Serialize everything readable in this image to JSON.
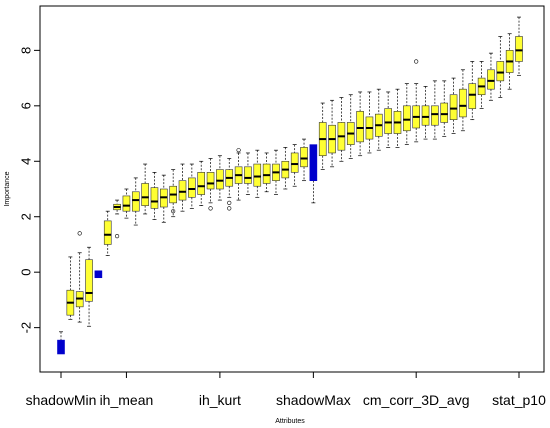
{
  "chart_data": {
    "type": "box",
    "xlabel": "Attributes",
    "ylabel": "Importance",
    "ylim": [
      -3.6,
      9.6
    ],
    "yticks": [
      -2,
      0,
      2,
      4,
      6,
      8
    ],
    "xticks": [
      {
        "index": 0,
        "label": "shadowMin"
      },
      {
        "index": 7,
        "label": "ih_mean"
      },
      {
        "index": 17,
        "label": "ih_kurt"
      },
      {
        "index": 27,
        "label": "shadowMax"
      },
      {
        "index": 38,
        "label": "cm_corr_3D_avg"
      },
      {
        "index": 49,
        "label": "stat_p10"
      }
    ],
    "colors": {
      "feature": "#ffff33",
      "shadow": "#0000cc",
      "median": "#000000",
      "whisker": "#000000"
    },
    "boxes": [
      {
        "index": 0,
        "kind": "shadow",
        "min": -2.95,
        "q1": -2.95,
        "median": -2.6,
        "q3": -2.45,
        "max": -2.15,
        "outliers": []
      },
      {
        "index": 1,
        "kind": "feature",
        "min": -1.7,
        "q1": -1.55,
        "median": -1.1,
        "q3": -0.65,
        "max": 0.55,
        "outliers": []
      },
      {
        "index": 2,
        "kind": "feature",
        "min": -1.8,
        "q1": -1.25,
        "median": -0.95,
        "q3": -0.7,
        "max": 0.7,
        "outliers": [
          1.4
        ]
      },
      {
        "index": 3,
        "kind": "feature",
        "min": -1.95,
        "q1": -1.05,
        "median": -0.75,
        "q3": 0.45,
        "max": 0.9,
        "outliers": []
      },
      {
        "index": 4,
        "kind": "shadow",
        "min": -0.2,
        "q1": -0.2,
        "median": -0.05,
        "q3": 0.05,
        "max": 0.05,
        "outliers": []
      },
      {
        "index": 5,
        "kind": "feature",
        "min": 0.6,
        "q1": 1.0,
        "median": 1.35,
        "q3": 1.85,
        "max": 2.2,
        "outliers": []
      },
      {
        "index": 6,
        "kind": "feature",
        "min": 2.1,
        "q1": 2.25,
        "median": 2.35,
        "q3": 2.45,
        "max": 2.6,
        "outliers": [
          1.3
        ]
      },
      {
        "index": 7,
        "kind": "feature",
        "min": 1.95,
        "q1": 2.2,
        "median": 2.4,
        "q3": 2.75,
        "max": 3.0,
        "outliers": []
      },
      {
        "index": 8,
        "kind": "feature",
        "min": 1.7,
        "q1": 2.2,
        "median": 2.6,
        "q3": 2.9,
        "max": 3.4,
        "outliers": []
      },
      {
        "index": 9,
        "kind": "feature",
        "min": 2.1,
        "q1": 2.4,
        "median": 2.7,
        "q3": 3.2,
        "max": 3.9,
        "outliers": []
      },
      {
        "index": 10,
        "kind": "feature",
        "min": 1.9,
        "q1": 2.3,
        "median": 2.55,
        "q3": 3.05,
        "max": 3.6,
        "outliers": []
      },
      {
        "index": 11,
        "kind": "feature",
        "min": 1.8,
        "q1": 2.35,
        "median": 2.7,
        "q3": 3.0,
        "max": 3.5,
        "outliers": []
      },
      {
        "index": 12,
        "kind": "feature",
        "min": 2.0,
        "q1": 2.5,
        "median": 2.8,
        "q3": 3.1,
        "max": 3.7,
        "outliers": [
          2.2
        ]
      },
      {
        "index": 13,
        "kind": "feature",
        "min": 2.2,
        "q1": 2.6,
        "median": 2.9,
        "q3": 3.3,
        "max": 3.9,
        "outliers": []
      },
      {
        "index": 14,
        "kind": "feature",
        "min": 2.3,
        "q1": 2.7,
        "median": 3.0,
        "q3": 3.4,
        "max": 3.9,
        "outliers": []
      },
      {
        "index": 15,
        "kind": "feature",
        "min": 2.4,
        "q1": 2.8,
        "median": 3.1,
        "q3": 3.6,
        "max": 4.0,
        "outliers": []
      },
      {
        "index": 16,
        "kind": "feature",
        "min": 2.5,
        "q1": 3.0,
        "median": 3.2,
        "q3": 3.6,
        "max": 4.1,
        "outliers": [
          2.3
        ]
      },
      {
        "index": 17,
        "kind": "feature",
        "min": 2.6,
        "q1": 3.0,
        "median": 3.3,
        "q3": 3.7,
        "max": 4.2,
        "outliers": []
      },
      {
        "index": 18,
        "kind": "feature",
        "min": 2.7,
        "q1": 3.1,
        "median": 3.4,
        "q3": 3.7,
        "max": 4.1,
        "outliers": [
          2.3,
          2.5
        ]
      },
      {
        "index": 19,
        "kind": "feature",
        "min": 2.6,
        "q1": 3.2,
        "median": 3.5,
        "q3": 3.8,
        "max": 4.3,
        "outliers": [
          4.4
        ]
      },
      {
        "index": 20,
        "kind": "feature",
        "min": 2.8,
        "q1": 3.2,
        "median": 3.4,
        "q3": 3.8,
        "max": 4.3,
        "outliers": []
      },
      {
        "index": 21,
        "kind": "feature",
        "min": 2.7,
        "q1": 3.1,
        "median": 3.45,
        "q3": 3.9,
        "max": 4.4,
        "outliers": []
      },
      {
        "index": 22,
        "kind": "feature",
        "min": 2.9,
        "q1": 3.2,
        "median": 3.5,
        "q3": 3.9,
        "max": 4.3,
        "outliers": []
      },
      {
        "index": 23,
        "kind": "feature",
        "min": 2.8,
        "q1": 3.3,
        "median": 3.6,
        "q3": 3.9,
        "max": 4.4,
        "outliers": []
      },
      {
        "index": 24,
        "kind": "feature",
        "min": 3.0,
        "q1": 3.4,
        "median": 3.7,
        "q3": 4.0,
        "max": 4.5,
        "outliers": []
      },
      {
        "index": 25,
        "kind": "feature",
        "min": 3.1,
        "q1": 3.6,
        "median": 3.9,
        "q3": 4.3,
        "max": 4.6,
        "outliers": []
      },
      {
        "index": 26,
        "kind": "feature",
        "min": 3.3,
        "q1": 3.8,
        "median": 4.1,
        "q3": 4.5,
        "max": 4.8,
        "outliers": []
      },
      {
        "index": 27,
        "kind": "shadow",
        "min": 2.5,
        "q1": 3.3,
        "median": 4.1,
        "q3": 4.6,
        "max": 4.6,
        "outliers": []
      },
      {
        "index": 28,
        "kind": "feature",
        "min": 3.7,
        "q1": 4.2,
        "median": 4.8,
        "q3": 5.4,
        "max": 6.1,
        "outliers": []
      },
      {
        "index": 29,
        "kind": "feature",
        "min": 3.8,
        "q1": 4.3,
        "median": 4.8,
        "q3": 5.3,
        "max": 6.2,
        "outliers": []
      },
      {
        "index": 30,
        "kind": "feature",
        "min": 4.0,
        "q1": 4.4,
        "median": 4.9,
        "q3": 5.4,
        "max": 6.3,
        "outliers": []
      },
      {
        "index": 31,
        "kind": "feature",
        "min": 4.1,
        "q1": 4.6,
        "median": 5.0,
        "q3": 5.4,
        "max": 6.4,
        "outliers": []
      },
      {
        "index": 32,
        "kind": "feature",
        "min": 4.2,
        "q1": 4.7,
        "median": 5.2,
        "q3": 5.8,
        "max": 6.5,
        "outliers": []
      },
      {
        "index": 33,
        "kind": "feature",
        "min": 4.3,
        "q1": 4.8,
        "median": 5.2,
        "q3": 5.6,
        "max": 6.5,
        "outliers": []
      },
      {
        "index": 34,
        "kind": "feature",
        "min": 4.4,
        "q1": 4.9,
        "median": 5.3,
        "q3": 5.7,
        "max": 6.6,
        "outliers": []
      },
      {
        "index": 35,
        "kind": "feature",
        "min": 4.5,
        "q1": 5.0,
        "median": 5.4,
        "q3": 5.9,
        "max": 6.5,
        "outliers": []
      },
      {
        "index": 36,
        "kind": "feature",
        "min": 4.5,
        "q1": 5.0,
        "median": 5.4,
        "q3": 5.8,
        "max": 6.6,
        "outliers": []
      },
      {
        "index": 37,
        "kind": "feature",
        "min": 4.6,
        "q1": 5.1,
        "median": 5.5,
        "q3": 6.0,
        "max": 6.8,
        "outliers": []
      },
      {
        "index": 38,
        "kind": "feature",
        "min": 4.7,
        "q1": 5.2,
        "median": 5.6,
        "q3": 6.0,
        "max": 6.8,
        "outliers": [
          7.6
        ]
      },
      {
        "index": 39,
        "kind": "feature",
        "min": 4.8,
        "q1": 5.3,
        "median": 5.6,
        "q3": 6.0,
        "max": 6.7,
        "outliers": []
      },
      {
        "index": 40,
        "kind": "feature",
        "min": 4.8,
        "q1": 5.3,
        "median": 5.7,
        "q3": 6.0,
        "max": 6.9,
        "outliers": []
      },
      {
        "index": 41,
        "kind": "feature",
        "min": 4.9,
        "q1": 5.4,
        "median": 5.7,
        "q3": 6.1,
        "max": 6.9,
        "outliers": []
      },
      {
        "index": 42,
        "kind": "feature",
        "min": 5.0,
        "q1": 5.5,
        "median": 5.9,
        "q3": 6.4,
        "max": 7.0,
        "outliers": []
      },
      {
        "index": 43,
        "kind": "feature",
        "min": 5.1,
        "q1": 5.6,
        "median": 6.0,
        "q3": 6.6,
        "max": 7.3,
        "outliers": []
      },
      {
        "index": 44,
        "kind": "feature",
        "min": 5.5,
        "q1": 5.9,
        "median": 6.4,
        "q3": 6.8,
        "max": 7.6,
        "outliers": []
      },
      {
        "index": 45,
        "kind": "feature",
        "min": 5.9,
        "q1": 6.4,
        "median": 6.7,
        "q3": 7.0,
        "max": 7.6,
        "outliers": []
      },
      {
        "index": 46,
        "kind": "feature",
        "min": 6.2,
        "q1": 6.6,
        "median": 6.9,
        "q3": 7.3,
        "max": 7.9,
        "outliers": []
      },
      {
        "index": 47,
        "kind": "feature",
        "min": 6.3,
        "q1": 6.9,
        "median": 7.2,
        "q3": 7.6,
        "max": 8.5,
        "outliers": []
      },
      {
        "index": 48,
        "kind": "feature",
        "min": 6.6,
        "q1": 7.2,
        "median": 7.6,
        "q3": 8.0,
        "max": 8.6,
        "outliers": []
      },
      {
        "index": 49,
        "kind": "feature",
        "min": 7.1,
        "q1": 7.6,
        "median": 8.0,
        "q3": 8.5,
        "max": 9.2,
        "outliers": []
      }
    ]
  }
}
